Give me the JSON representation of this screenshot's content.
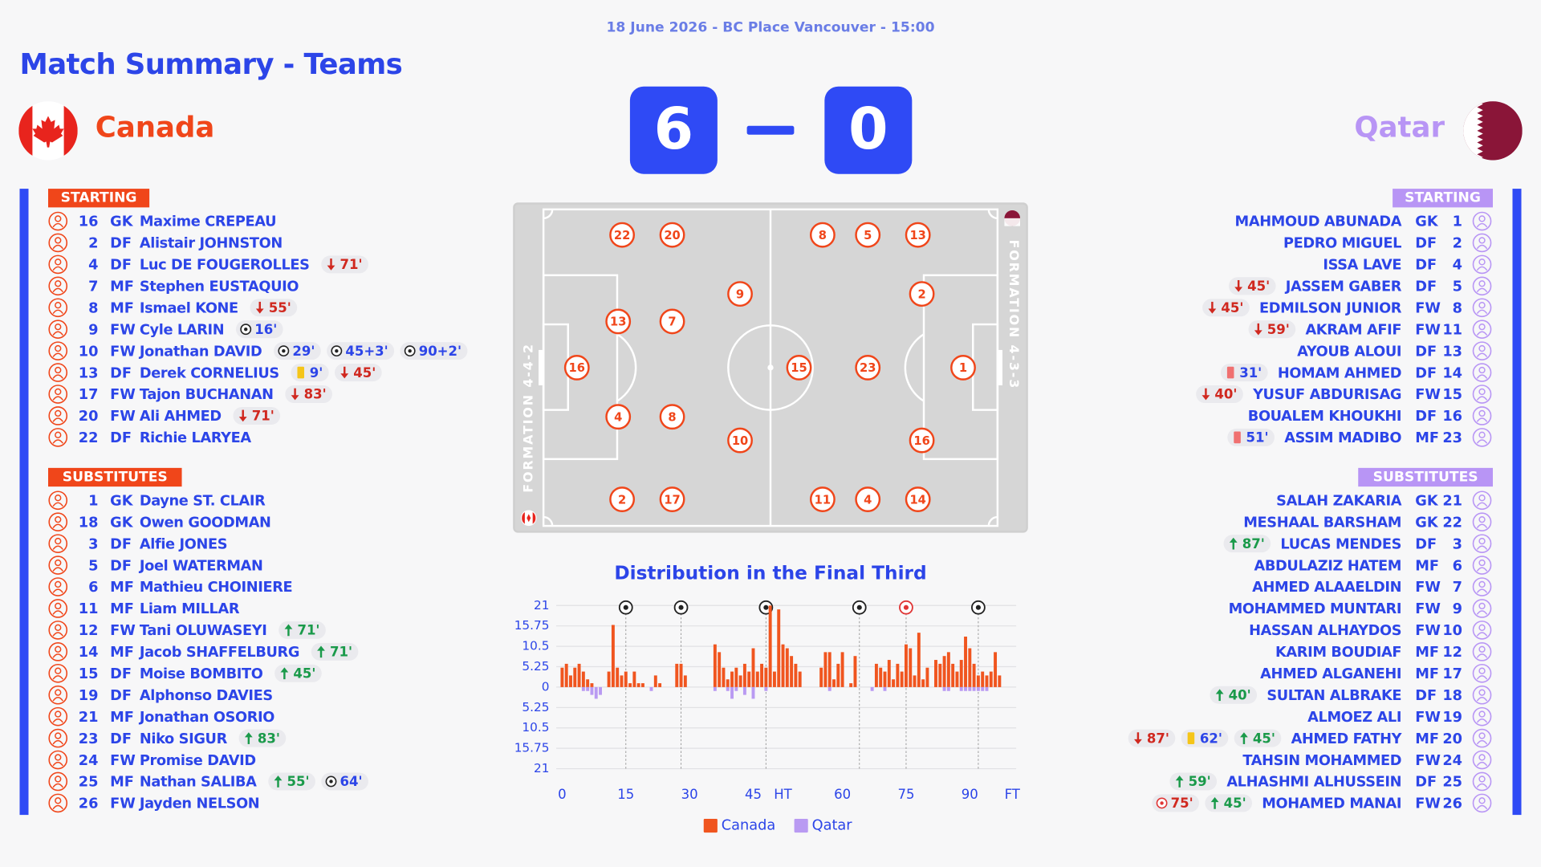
{
  "header": {
    "date": "18 June 2026 - BC Place Vancouver - 15:00",
    "title": "Match Summary - Teams"
  },
  "score": {
    "home": 6,
    "away": 0
  },
  "home": {
    "name": "Canada",
    "starting_label": "STARTING",
    "substitutes_label": "SUBSTITUTES",
    "starting": [
      {
        "number": "16",
        "pos": "GK",
        "name": "Maxime CREPEAU",
        "events": []
      },
      {
        "number": "2",
        "pos": "DF",
        "name": "Alistair JOHNSTON",
        "events": []
      },
      {
        "number": "4",
        "pos": "DF",
        "name": "Luc DE FOUGEROLLES",
        "events": [
          {
            "type": "sub_off",
            "label": "71'"
          }
        ]
      },
      {
        "number": "7",
        "pos": "MF",
        "name": "Stephen EUSTAQUIO",
        "events": []
      },
      {
        "number": "8",
        "pos": "MF",
        "name": "Ismael KONE",
        "events": [
          {
            "type": "sub_off",
            "label": "55'"
          }
        ]
      },
      {
        "number": "9",
        "pos": "FW",
        "name": "Cyle LARIN",
        "events": [
          {
            "type": "goal",
            "label": "16'"
          }
        ]
      },
      {
        "number": "10",
        "pos": "FW",
        "name": "Jonathan DAVID",
        "events": [
          {
            "type": "goal",
            "label": "29'"
          },
          {
            "type": "goal",
            "label": "45+3'"
          },
          {
            "type": "goal",
            "label": "90+2'"
          }
        ]
      },
      {
        "number": "13",
        "pos": "DF",
        "name": "Derek CORNELIUS",
        "events": [
          {
            "type": "yellow",
            "label": "9'"
          },
          {
            "type": "sub_off",
            "label": "45'"
          }
        ]
      },
      {
        "number": "17",
        "pos": "FW",
        "name": "Tajon BUCHANAN",
        "events": [
          {
            "type": "sub_off",
            "label": "83'"
          }
        ]
      },
      {
        "number": "20",
        "pos": "FW",
        "name": "Ali AHMED",
        "events": [
          {
            "type": "sub_off",
            "label": "71'"
          }
        ]
      },
      {
        "number": "22",
        "pos": "DF",
        "name": "Richie LARYEA",
        "events": []
      }
    ],
    "substitutes": [
      {
        "number": "1",
        "pos": "GK",
        "name": "Dayne ST. CLAIR",
        "events": []
      },
      {
        "number": "18",
        "pos": "GK",
        "name": "Owen GOODMAN",
        "events": []
      },
      {
        "number": "3",
        "pos": "DF",
        "name": "Alfie JONES",
        "events": []
      },
      {
        "number": "5",
        "pos": "DF",
        "name": "Joel WATERMAN",
        "events": []
      },
      {
        "number": "6",
        "pos": "MF",
        "name": "Mathieu CHOINIERE",
        "events": []
      },
      {
        "number": "11",
        "pos": "MF",
        "name": "Liam MILLAR",
        "events": []
      },
      {
        "number": "12",
        "pos": "FW",
        "name": "Tani OLUWASEYI",
        "events": [
          {
            "type": "sub_on",
            "label": "71'"
          }
        ]
      },
      {
        "number": "14",
        "pos": "MF",
        "name": "Jacob SHAFFELBURG",
        "events": [
          {
            "type": "sub_on",
            "label": "71'"
          }
        ]
      },
      {
        "number": "15",
        "pos": "DF",
        "name": "Moise BOMBITO",
        "events": [
          {
            "type": "sub_on",
            "label": "45'"
          }
        ]
      },
      {
        "number": "19",
        "pos": "DF",
        "name": "Alphonso DAVIES",
        "events": []
      },
      {
        "number": "21",
        "pos": "MF",
        "name": "Jonathan OSORIO",
        "events": []
      },
      {
        "number": "23",
        "pos": "DF",
        "name": "Niko SIGUR",
        "events": [
          {
            "type": "sub_on",
            "label": "83'"
          }
        ]
      },
      {
        "number": "24",
        "pos": "FW",
        "name": "Promise DAVID",
        "events": []
      },
      {
        "number": "25",
        "pos": "MF",
        "name": "Nathan SALIBA",
        "events": [
          {
            "type": "sub_on",
            "label": "55'"
          },
          {
            "type": "goal",
            "label": "64'"
          }
        ]
      },
      {
        "number": "26",
        "pos": "FW",
        "name": "Jayden NELSON",
        "events": []
      }
    ]
  },
  "away": {
    "name": "Qatar",
    "starting_label": "STARTING",
    "substitutes_label": "SUBSTITUTES",
    "starting": [
      {
        "number": "1",
        "pos": "GK",
        "name": "MAHMOUD ABUNADA",
        "events": []
      },
      {
        "number": "2",
        "pos": "DF",
        "name": "PEDRO MIGUEL",
        "events": []
      },
      {
        "number": "4",
        "pos": "DF",
        "name": "ISSA LAVE",
        "events": []
      },
      {
        "number": "5",
        "pos": "DF",
        "name": "JASSEM GABER",
        "events": [
          {
            "type": "sub_off",
            "label": "45'"
          }
        ]
      },
      {
        "number": "8",
        "pos": "FW",
        "name": "EDMILSON JUNIOR",
        "events": [
          {
            "type": "sub_off",
            "label": "45'"
          }
        ]
      },
      {
        "number": "11",
        "pos": "FW",
        "name": "AKRAM AFIF",
        "events": [
          {
            "type": "sub_off",
            "label": "59'"
          }
        ]
      },
      {
        "number": "13",
        "pos": "DF",
        "name": "AYOUB ALOUI",
        "events": []
      },
      {
        "number": "14",
        "pos": "DF",
        "name": "HOMAM AHMED",
        "events": [
          {
            "type": "red",
            "label": "31'"
          }
        ]
      },
      {
        "number": "15",
        "pos": "FW",
        "name": "YUSUF ABDURISAG",
        "events": [
          {
            "type": "sub_off",
            "label": "40'"
          }
        ]
      },
      {
        "number": "16",
        "pos": "DF",
        "name": "BOUALEM KHOUKHI",
        "events": []
      },
      {
        "number": "23",
        "pos": "MF",
        "name": "ASSIM MADIBO",
        "events": [
          {
            "type": "red",
            "label": "51'"
          }
        ]
      }
    ],
    "substitutes": [
      {
        "number": "21",
        "pos": "GK",
        "name": "SALAH ZAKARIA",
        "events": []
      },
      {
        "number": "22",
        "pos": "GK",
        "name": "MESHAAL BARSHAM",
        "events": []
      },
      {
        "number": "3",
        "pos": "DF",
        "name": "LUCAS MENDES",
        "events": [
          {
            "type": "sub_on",
            "label": "87'"
          }
        ]
      },
      {
        "number": "6",
        "pos": "MF",
        "name": "ABDULAZIZ HATEM",
        "events": []
      },
      {
        "number": "7",
        "pos": "FW",
        "name": "AHMED ALAAELDIN",
        "events": []
      },
      {
        "number": "9",
        "pos": "FW",
        "name": "MOHAMMED MUNTARI",
        "events": []
      },
      {
        "number": "10",
        "pos": "FW",
        "name": "HASSAN ALHAYDOS",
        "events": []
      },
      {
        "number": "12",
        "pos": "MF",
        "name": "KARIM BOUDIAF",
        "events": []
      },
      {
        "number": "17",
        "pos": "MF",
        "name": "AHMED ALGANEHI",
        "events": []
      },
      {
        "number": "18",
        "pos": "DF",
        "name": "SULTAN ALBRAKE",
        "events": [
          {
            "type": "sub_on",
            "label": "40'"
          }
        ]
      },
      {
        "number": "19",
        "pos": "FW",
        "name": "ALMOEZ ALI",
        "events": []
      },
      {
        "number": "20",
        "pos": "MF",
        "name": "AHMED FATHY",
        "events": [
          {
            "type": "sub_off",
            "label": "87'"
          },
          {
            "type": "yellow",
            "label": "62'"
          },
          {
            "type": "sub_on",
            "label": "45'"
          }
        ]
      },
      {
        "number": "24",
        "pos": "FW",
        "name": "TAHSIN MOHAMMED",
        "events": []
      },
      {
        "number": "25",
        "pos": "DF",
        "name": "ALHASHMI ALHUSSEIN",
        "events": [
          {
            "type": "sub_on",
            "label": "59'"
          }
        ]
      },
      {
        "number": "26",
        "pos": "FW",
        "name": "MOHAMED MANAI",
        "events": [
          {
            "type": "own_goal",
            "label": "75'"
          },
          {
            "type": "sub_on",
            "label": "45'"
          }
        ]
      }
    ]
  },
  "pitch": {
    "home_formation": "FORMATION 4-4-2",
    "away_formation": "FORMATION 4-3-3",
    "home_numbers": [
      22,
      20,
      13,
      7,
      9,
      16,
      4,
      8,
      10,
      2,
      17
    ],
    "away_numbers": [
      8,
      5,
      13,
      2,
      15,
      23,
      1,
      16,
      11,
      4,
      14
    ]
  },
  "chart_data": {
    "type": "bar",
    "title": "Distribution in the Final Third",
    "x": [
      0,
      1,
      2,
      3,
      4,
      5,
      6,
      7,
      8,
      9,
      10,
      11,
      12,
      13,
      14,
      15,
      16,
      17,
      18,
      19,
      20,
      21,
      22,
      23,
      24,
      25,
      26,
      27,
      28,
      29,
      30,
      31,
      32,
      33,
      34,
      35,
      36,
      37,
      38,
      39,
      40,
      41,
      42,
      43,
      44,
      45,
      46,
      47,
      48,
      49,
      50,
      51,
      52,
      53,
      54,
      55,
      56,
      57,
      58,
      59,
      60,
      61,
      62,
      63,
      64,
      65,
      66,
      67,
      68,
      69,
      70,
      71,
      72,
      73,
      74,
      75,
      76,
      77,
      78,
      79,
      80,
      81,
      82,
      83,
      84,
      85,
      86,
      87,
      88,
      89,
      90,
      91,
      92,
      93,
      94,
      95,
      96,
      97,
      98,
      99,
      100,
      101,
      102,
      103,
      104,
      105
    ],
    "series": [
      {
        "name": "Canada",
        "color": "#f0551f",
        "values": [
          5,
          6,
          3,
          5,
          6,
          4,
          2,
          1,
          0,
          0,
          0,
          4,
          16,
          5,
          3,
          4,
          1,
          4,
          1,
          1,
          0,
          0,
          3,
          1,
          0,
          0,
          0,
          6,
          6,
          3,
          0,
          0,
          0,
          0,
          0,
          0,
          11,
          9,
          5,
          2,
          4,
          5,
          3,
          6,
          4,
          10,
          4,
          6,
          5,
          21,
          4,
          20,
          11,
          10,
          8,
          6,
          4,
          0,
          0,
          0,
          0,
          5,
          9,
          9,
          2,
          6,
          9,
          0,
          1,
          8,
          0,
          0,
          0,
          0,
          6,
          5,
          4,
          7,
          2,
          6,
          4,
          11,
          10,
          3,
          14,
          2,
          5,
          0,
          7,
          6,
          8,
          9,
          6,
          4,
          7,
          13,
          10,
          6,
          3,
          4,
          3,
          4,
          9,
          3,
          0,
          0
        ]
      },
      {
        "name": "Qatar",
        "color": "#b99af2",
        "values": [
          0,
          0,
          0,
          0,
          0,
          -1,
          -1,
          -2,
          -3,
          -2,
          0,
          0,
          0,
          0,
          0,
          0,
          0,
          0,
          0,
          0,
          0,
          -1,
          0,
          0,
          0,
          0,
          0,
          0,
          0,
          0,
          0,
          0,
          0,
          0,
          0,
          0,
          -1,
          0,
          0,
          -1,
          -3,
          -1,
          0,
          -2,
          0,
          -3,
          0,
          0,
          -1,
          0,
          0,
          0,
          0,
          0,
          0,
          0,
          0,
          0,
          0,
          0,
          0,
          0,
          0,
          -1,
          0,
          0,
          0,
          0,
          0,
          0,
          0,
          0,
          0,
          -1,
          0,
          0,
          -1,
          0,
          0,
          0,
          0,
          0,
          0,
          0,
          0,
          0,
          0,
          0,
          0,
          0,
          -1,
          -1,
          0,
          0,
          -1,
          -1,
          -1,
          -1,
          -1,
          -1,
          -1,
          0,
          0,
          0,
          0,
          0
        ]
      }
    ],
    "xlim": [
      0,
      106
    ],
    "ylim": [
      -21,
      21
    ],
    "yticks": [
      21,
      15.75,
      10.5,
      5.25,
      0,
      {
        "value": -5.25,
        "label": "5.25"
      },
      {
        "value": -10.5,
        "label": "10.5"
      },
      {
        "value": -15.75,
        "label": "15.75"
      },
      {
        "value": -21,
        "label": "21"
      }
    ],
    "xticks": [
      0,
      15,
      30,
      45,
      {
        "value": 52,
        "label": "HT"
      },
      {
        "value": 66,
        "label": "60"
      },
      {
        "value": 81,
        "label": "75"
      },
      {
        "value": 96,
        "label": "90"
      },
      {
        "value": 106,
        "label": "FT"
      }
    ],
    "grid": true,
    "goals": [
      {
        "x": 15,
        "color": "#222222"
      },
      {
        "x": 28,
        "color": "#222222"
      },
      {
        "x": 48,
        "color": "#222222"
      },
      {
        "x": 70,
        "color": "#222222"
      },
      {
        "x": 81,
        "color": "#e03535"
      },
      {
        "x": 98,
        "color": "#222222"
      }
    ]
  }
}
